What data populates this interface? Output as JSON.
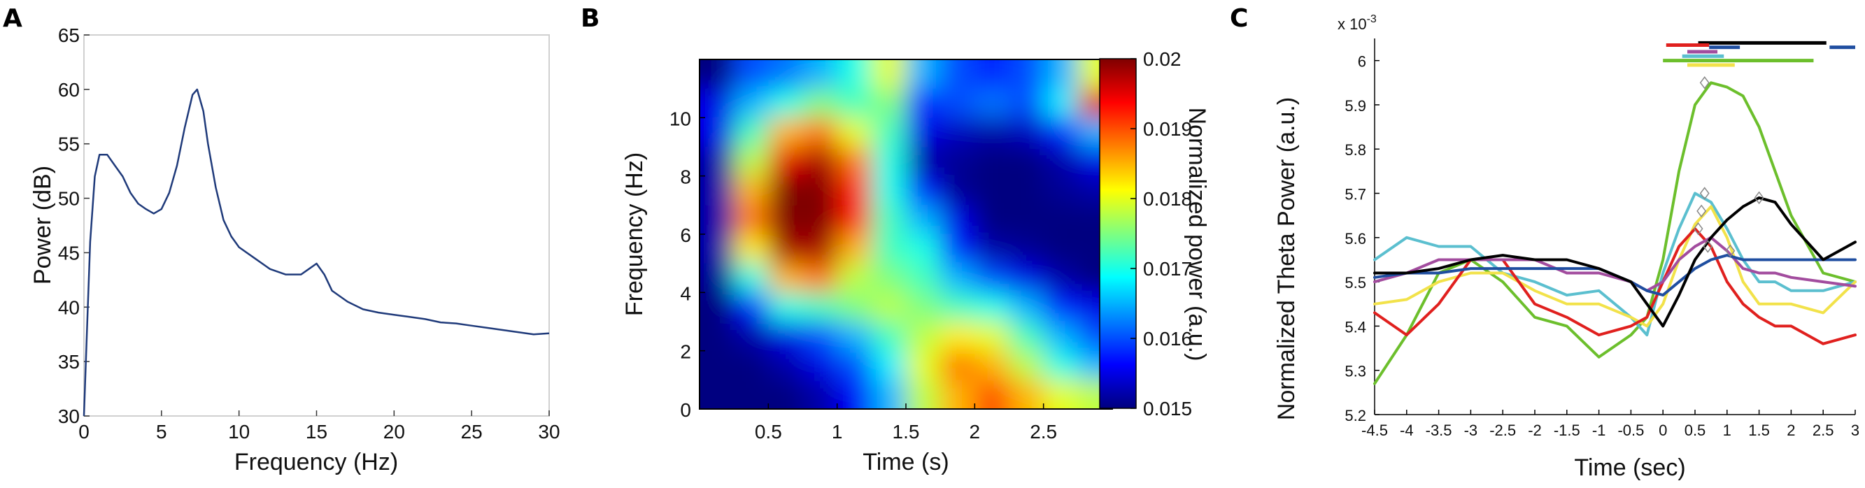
{
  "panels": {
    "a": {
      "letter": "A"
    },
    "b": {
      "letter": "B"
    },
    "c": {
      "letter": "C"
    }
  },
  "chart_data": [
    {
      "panel": "A",
      "type": "line",
      "xlabel": "Frequency (Hz)",
      "ylabel": "Power (dB)",
      "xlim": [
        0,
        30
      ],
      "ylim": [
        30,
        65
      ],
      "xticks": [
        0,
        5,
        10,
        15,
        20,
        25,
        30
      ],
      "yticks": [
        30,
        35,
        40,
        45,
        50,
        55,
        60,
        65
      ],
      "grid": false,
      "line_color": "#1f3a7a",
      "series": [
        {
          "x": [
            0,
            0.2,
            0.4,
            0.7,
            1.0,
            1.5,
            2.0,
            2.5,
            3.0,
            3.5,
            4.0,
            4.5,
            5.0,
            5.5,
            6.0,
            6.5,
            7.0,
            7.3,
            7.7,
            8.0,
            8.5,
            9.0,
            9.5,
            10.0,
            11.0,
            12.0,
            13.0,
            14.0,
            14.5,
            15.0,
            15.5,
            16.0,
            17.0,
            18.0,
            19.0,
            20.0,
            21.0,
            22.0,
            23.0,
            24.0,
            25.0,
            26.0,
            27.0,
            28.0,
            29.0,
            30.0
          ],
          "y": [
            30,
            38,
            46,
            52,
            54,
            54,
            53,
            52,
            50.5,
            49.5,
            49,
            48.6,
            49,
            50.5,
            53,
            56.5,
            59.5,
            60,
            58,
            55,
            51,
            48,
            46.5,
            45.5,
            44.5,
            43.5,
            43,
            43,
            43.5,
            44,
            43,
            41.5,
            40.5,
            39.8,
            39.5,
            39.3,
            39.1,
            38.9,
            38.6,
            38.5,
            38.3,
            38.1,
            37.9,
            37.7,
            37.5,
            37.6
          ]
        }
      ]
    },
    {
      "panel": "B",
      "type": "heatmap",
      "xlabel": "Time (s)",
      "ylabel": "Frequency (Hz)",
      "colorbar_label": "Normalized power (a.u.)",
      "xlim": [
        0,
        3
      ],
      "ylim": [
        0,
        12
      ],
      "xticks": [
        0.5,
        1,
        1.5,
        2,
        2.5
      ],
      "yticks": [
        0,
        2,
        4,
        6,
        8,
        10
      ],
      "clim": [
        0.015,
        0.02
      ],
      "colorbar_ticks": [
        0.015,
        0.016,
        0.017,
        0.018,
        0.019,
        0.02
      ],
      "colorbar_tick_labels": [
        "0.015",
        "0.016",
        "0.017",
        "0.018",
        "0.019",
        "0.02"
      ],
      "colormap": "jet",
      "rows_freq_hz": [
        11.5,
        10.5,
        9.5,
        8.5,
        7.5,
        6.5,
        5.5,
        4.5,
        3.5,
        2.5,
        1.5,
        0.5
      ],
      "cols_time_s": [
        0.125,
        0.375,
        0.625,
        0.875,
        1.125,
        1.375,
        1.625,
        1.875,
        2.125,
        2.375,
        2.625,
        2.875
      ],
      "values": [
        [
          0.015,
          0.016,
          0.0162,
          0.0165,
          0.017,
          0.018,
          0.0165,
          0.016,
          0.0158,
          0.016,
          0.0165,
          0.018
        ],
        [
          0.0155,
          0.0165,
          0.017,
          0.0175,
          0.0172,
          0.0175,
          0.0158,
          0.016,
          0.0162,
          0.016,
          0.0168,
          0.0195
        ],
        [
          0.0155,
          0.0172,
          0.0185,
          0.0188,
          0.018,
          0.0172,
          0.0155,
          0.0153,
          0.0152,
          0.0153,
          0.0158,
          0.0165
        ],
        [
          0.0152,
          0.0178,
          0.0195,
          0.0198,
          0.0188,
          0.017,
          0.0152,
          0.0151,
          0.015,
          0.015,
          0.0152,
          0.0155
        ],
        [
          0.0152,
          0.0185,
          0.02,
          0.02,
          0.0192,
          0.017,
          0.0158,
          0.0151,
          0.015,
          0.015,
          0.0151,
          0.0152
        ],
        [
          0.0152,
          0.0188,
          0.02,
          0.02,
          0.0192,
          0.0172,
          0.0165,
          0.0155,
          0.015,
          0.015,
          0.015,
          0.015
        ],
        [
          0.0152,
          0.0182,
          0.0198,
          0.0198,
          0.0185,
          0.0172,
          0.017,
          0.0158,
          0.0152,
          0.0151,
          0.015,
          0.015
        ],
        [
          0.0151,
          0.017,
          0.0185,
          0.0188,
          0.0178,
          0.0175,
          0.0172,
          0.0165,
          0.016,
          0.0155,
          0.0152,
          0.015
        ],
        [
          0.015,
          0.0158,
          0.017,
          0.0172,
          0.0175,
          0.0178,
          0.0175,
          0.0172,
          0.017,
          0.0165,
          0.0158,
          0.0155
        ],
        [
          0.015,
          0.0152,
          0.0155,
          0.016,
          0.0165,
          0.0172,
          0.0178,
          0.0182,
          0.018,
          0.0172,
          0.0165,
          0.016
        ],
        [
          0.015,
          0.015,
          0.0152,
          0.0155,
          0.016,
          0.0168,
          0.018,
          0.0188,
          0.0185,
          0.0178,
          0.017,
          0.0165
        ],
        [
          0.015,
          0.015,
          0.015,
          0.0152,
          0.0156,
          0.0165,
          0.0178,
          0.0185,
          0.019,
          0.0185,
          0.018,
          0.0178
        ]
      ]
    },
    {
      "panel": "C",
      "type": "line",
      "xlabel": "Time (sec)",
      "ylabel": "Normalized Theta Power (a.u.)",
      "y_multiplier": "x 10",
      "y_multiplier_exp": "-3",
      "xlim": [
        -4.5,
        3
      ],
      "ylim": [
        5.2,
        6.05
      ],
      "xticks": [
        -4.5,
        -4,
        -3.5,
        -3,
        -2.5,
        -2,
        -1.5,
        -1,
        -0.5,
        0,
        0.5,
        1,
        1.5,
        2,
        2.5,
        3
      ],
      "xtick_labels": [
        "-4.5",
        "-4",
        "-3.5",
        "-3",
        "-2.5",
        "-2",
        "-1.5",
        "-1",
        "-0.5",
        "0",
        "0.5",
        "1",
        "1.5",
        "2",
        "2.5",
        "3"
      ],
      "yticks": [
        5.2,
        5.3,
        5.4,
        5.5,
        5.6,
        5.7,
        5.8,
        5.9,
        6.0
      ],
      "ytick_labels": [
        "5.2",
        "5.3",
        "5.4",
        "5.5",
        "5.6",
        "5.7",
        "5.8",
        "5.9",
        "6"
      ],
      "x": [
        -4.5,
        -4.0,
        -3.5,
        -3.0,
        -2.5,
        -2.0,
        -1.5,
        -1.0,
        -0.5,
        -0.25,
        0,
        0.25,
        0.5,
        0.75,
        1.0,
        1.25,
        1.5,
        1.75,
        2.0,
        2.5,
        3.0
      ],
      "series": [
        {
          "color": "#6cbf2c",
          "values": [
            5.27,
            5.38,
            5.52,
            5.55,
            5.5,
            5.42,
            5.4,
            5.33,
            5.38,
            5.42,
            5.55,
            5.75,
            5.9,
            5.95,
            5.94,
            5.92,
            5.85,
            5.75,
            5.65,
            5.52,
            5.5
          ]
        },
        {
          "color": "#5bbfcf",
          "values": [
            5.55,
            5.6,
            5.58,
            5.58,
            5.52,
            5.5,
            5.47,
            5.48,
            5.42,
            5.38,
            5.52,
            5.62,
            5.7,
            5.68,
            5.62,
            5.55,
            5.5,
            5.5,
            5.48,
            5.48,
            5.5
          ]
        },
        {
          "color": "#f2e24a",
          "values": [
            5.45,
            5.46,
            5.5,
            5.52,
            5.52,
            5.48,
            5.45,
            5.45,
            5.42,
            5.4,
            5.45,
            5.55,
            5.63,
            5.67,
            5.6,
            5.5,
            5.45,
            5.45,
            5.45,
            5.43,
            5.5
          ]
        },
        {
          "color": "#e0201e",
          "values": [
            5.43,
            5.38,
            5.45,
            5.55,
            5.55,
            5.45,
            5.42,
            5.38,
            5.4,
            5.42,
            5.5,
            5.58,
            5.62,
            5.58,
            5.5,
            5.45,
            5.42,
            5.4,
            5.4,
            5.36,
            5.38
          ]
        },
        {
          "color": "#a24c9e",
          "values": [
            5.5,
            5.52,
            5.55,
            5.55,
            5.55,
            5.55,
            5.52,
            5.52,
            5.5,
            5.48,
            5.5,
            5.55,
            5.58,
            5.6,
            5.57,
            5.53,
            5.52,
            5.52,
            5.51,
            5.5,
            5.49
          ]
        },
        {
          "color": "#1f4ea0",
          "values": [
            5.51,
            5.52,
            5.52,
            5.53,
            5.53,
            5.53,
            5.53,
            5.53,
            5.5,
            5.48,
            5.47,
            5.5,
            5.53,
            5.55,
            5.56,
            5.55,
            5.55,
            5.55,
            5.55,
            5.55,
            5.55
          ]
        },
        {
          "color": "#000000",
          "values": [
            5.52,
            5.52,
            5.53,
            5.55,
            5.56,
            5.55,
            5.55,
            5.53,
            5.5,
            5.45,
            5.4,
            5.47,
            5.55,
            5.6,
            5.64,
            5.67,
            5.69,
            5.68,
            5.63,
            5.55,
            5.59
          ]
        }
      ],
      "peak_markers": [
        {
          "x": 0.65,
          "y": 5.95
        },
        {
          "x": 0.65,
          "y": 5.7
        },
        {
          "x": 0.6,
          "y": 5.66
        },
        {
          "x": 0.55,
          "y": 5.62
        },
        {
          "x": 0.7,
          "y": 5.58
        },
        {
          "x": 1.05,
          "y": 5.57
        },
        {
          "x": 1.5,
          "y": 5.69
        }
      ],
      "significance_bars": [
        {
          "color": "#000000",
          "x0": 0.55,
          "x1": 2.55,
          "y": 6.04
        },
        {
          "color": "#1f4ea0",
          "x0": 2.6,
          "x1": 3.0,
          "y": 6.03
        },
        {
          "color": "#e0201e",
          "x0": 0.05,
          "x1": 0.72,
          "y": 6.035
        },
        {
          "color": "#1f4ea0",
          "x0": 0.72,
          "x1": 1.2,
          "y": 6.03
        },
        {
          "color": "#a24c9e",
          "x0": 0.38,
          "x1": 0.85,
          "y": 6.02
        },
        {
          "color": "#5bbfcf",
          "x0": 0.3,
          "x1": 0.95,
          "y": 6.01
        },
        {
          "color": "#6cbf2c",
          "x0": 0.0,
          "x1": 2.35,
          "y": 6.0
        },
        {
          "color": "#f2e24a",
          "x0": 0.38,
          "x1": 1.12,
          "y": 5.99
        }
      ]
    }
  ]
}
